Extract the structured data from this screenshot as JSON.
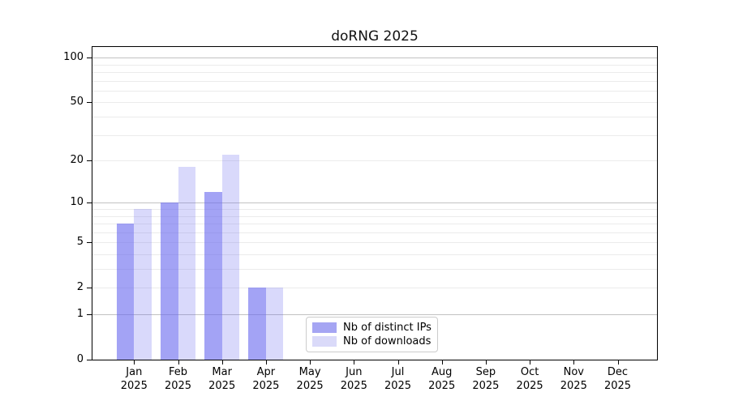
{
  "chart_data": {
    "type": "bar",
    "title": "doRNG 2025",
    "x_categories": [
      "Jan",
      "Feb",
      "Mar",
      "Apr",
      "May",
      "Jun",
      "Jul",
      "Aug",
      "Sep",
      "Oct",
      "Nov",
      "Dec"
    ],
    "x_sublabel": "2025",
    "series": [
      {
        "name": "Nb of distinct IPs",
        "color": "rgba(102,102,238,0.6)",
        "legend_color": "#a5a5f3",
        "values": [
          7,
          10,
          12,
          2,
          0,
          0,
          0,
          0,
          0,
          0,
          0,
          0
        ]
      },
      {
        "name": "Nb of downloads",
        "color": "rgba(102,102,238,0.25)",
        "legend_color": "#dadaf9",
        "values": [
          9,
          18,
          22,
          2,
          0,
          0,
          0,
          0,
          0,
          0,
          0,
          0
        ]
      }
    ],
    "y_axis": {
      "scale": "log10(1+x)",
      "tick_labels": [
        0,
        1,
        2,
        5,
        10,
        20,
        50,
        100
      ],
      "major_grid": [
        1,
        10,
        100
      ],
      "minor_grid": [
        2,
        3,
        4,
        5,
        6,
        7,
        8,
        9,
        20,
        30,
        40,
        50,
        60,
        70,
        80,
        90
      ],
      "ylim_max": 117
    },
    "legend": {
      "position": "lower center"
    },
    "colors": {
      "axis": "#000000",
      "text": "#000000",
      "major_grid": "#c2c2c2",
      "minor_grid": "#ebebeb",
      "legend_border": "#cccccc",
      "background": "#ffffff"
    }
  }
}
